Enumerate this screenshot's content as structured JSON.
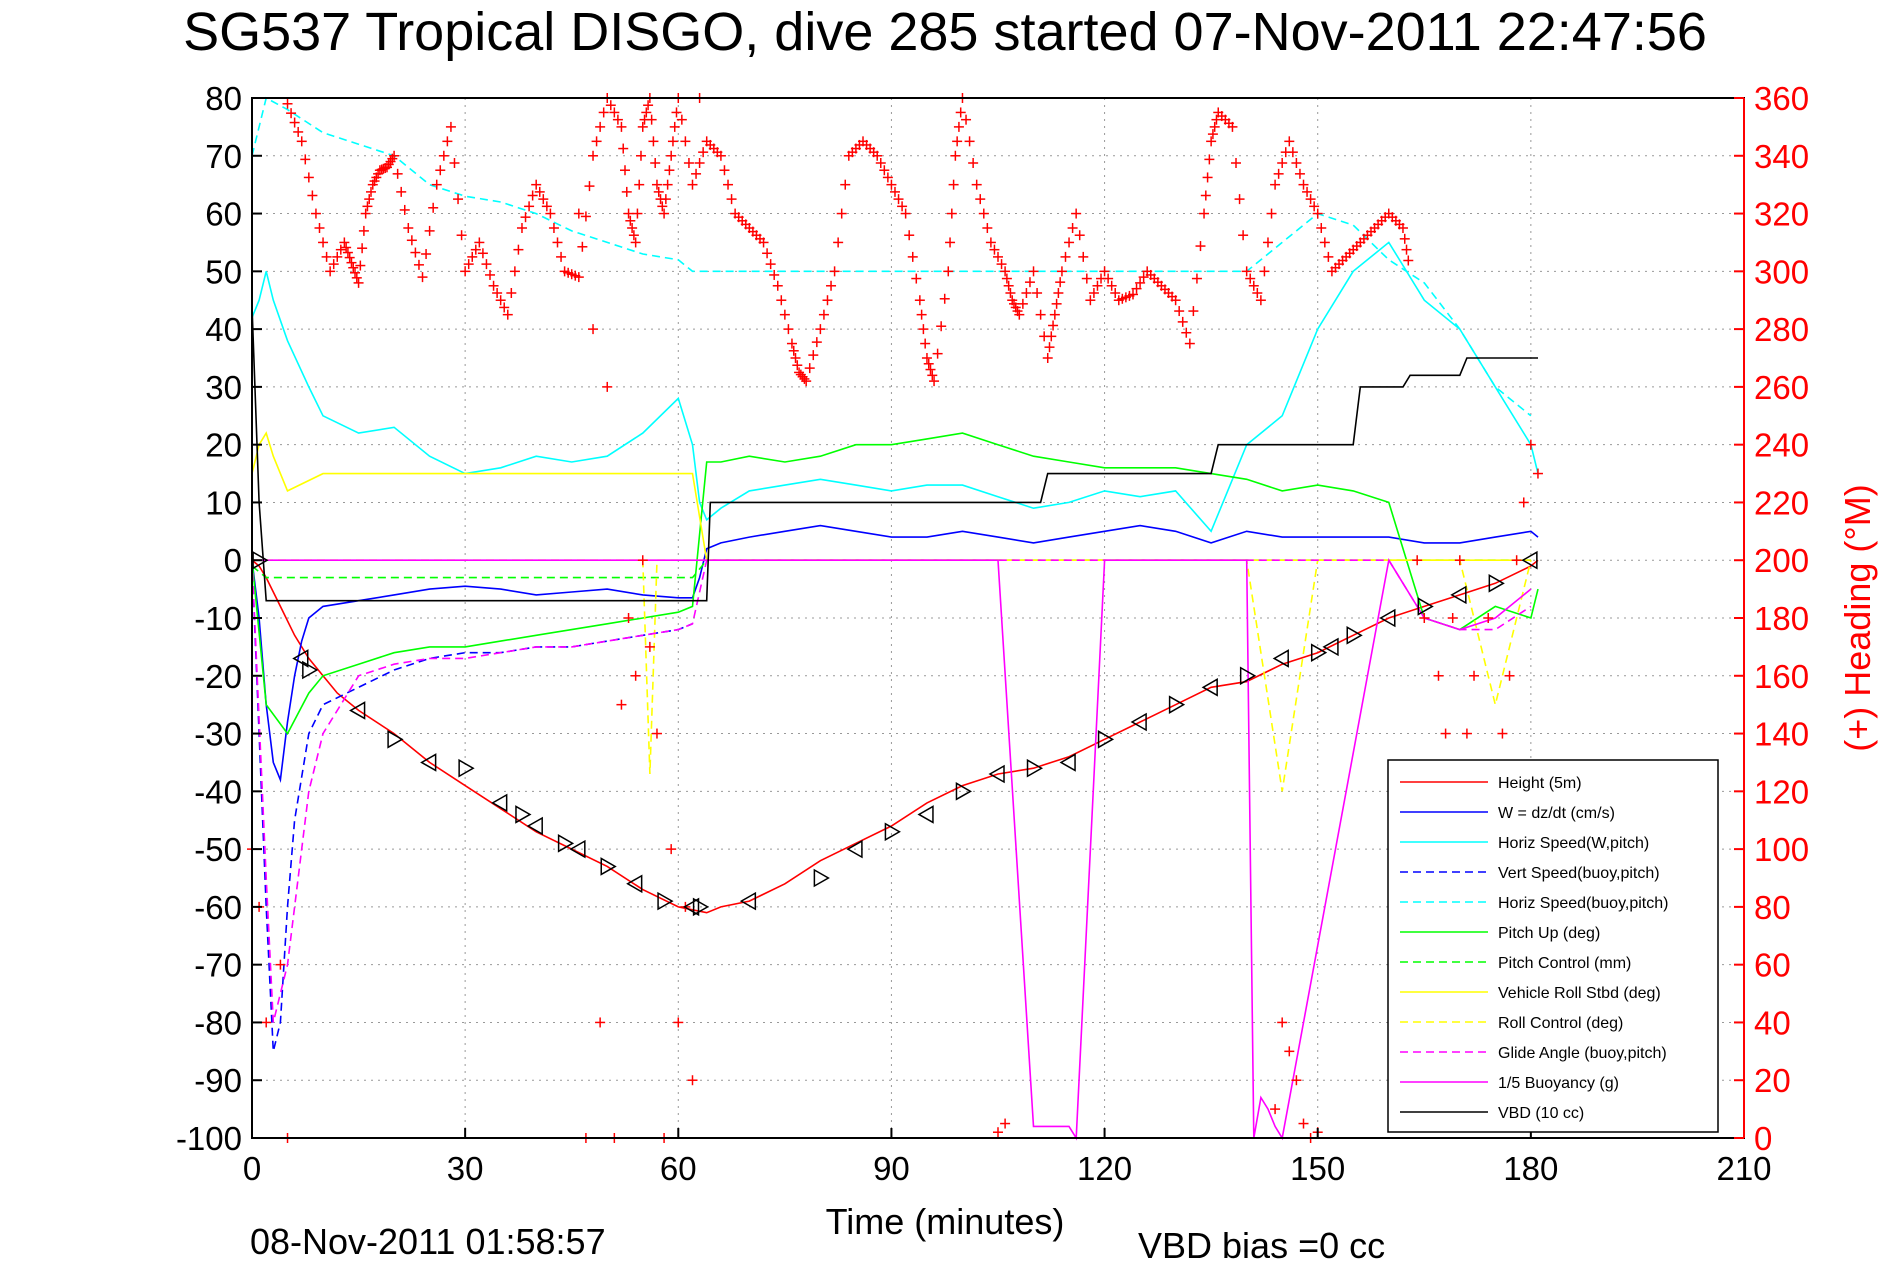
{
  "chart_data": {
    "type": "line",
    "title": "SG537 Tropical DISGO, dive 285 started 07-Nov-2011 22:47:56",
    "xlabel": "Time (minutes)",
    "ylabel": "",
    "y2label": "(+) Heading (°M)",
    "xlim": [
      0,
      210
    ],
    "ylim": [
      -100,
      80
    ],
    "y2lim": [
      0,
      360
    ],
    "x_ticks": [
      "0",
      "30",
      "60",
      "90",
      "120",
      "150",
      "180",
      "210"
    ],
    "y_ticks": [
      "-100",
      "-90",
      "-80",
      "-70",
      "-60",
      "-50",
      "-40",
      "-30",
      "-20",
      "-10",
      "0",
      "10",
      "20",
      "30",
      "40",
      "50",
      "60",
      "70",
      "80"
    ],
    "y2_ticks": [
      "0",
      "20",
      "40",
      "60",
      "80",
      "100",
      "120",
      "140",
      "160",
      "180",
      "200",
      "220",
      "240",
      "260",
      "280",
      "300",
      "320",
      "340",
      "360"
    ],
    "grid": true,
    "legend_placement": "bottom-right",
    "footer_left": "08-Nov-2011 01:58:57",
    "footer_right": "VBD bias =0 cc",
    "series": [
      {
        "name": "Height (5m)",
        "color": "#ff0000",
        "style": "solid",
        "x": [
          0,
          1,
          2,
          4,
          6,
          8,
          10,
          12,
          15,
          20,
          25,
          30,
          35,
          40,
          45,
          50,
          55,
          60,
          62,
          64,
          66,
          70,
          75,
          80,
          85,
          90,
          95,
          100,
          105,
          110,
          115,
          120,
          125,
          130,
          135,
          140,
          145,
          150,
          155,
          160,
          165,
          170,
          175,
          180,
          181
        ],
        "y": [
          0,
          -1,
          -3,
          -8,
          -13,
          -17,
          -20,
          -23,
          -26,
          -30,
          -35,
          -39,
          -43,
          -47,
          -50,
          -53,
          -57,
          -60,
          -60.5,
          -61,
          -60,
          -59,
          -56,
          -52,
          -49,
          -46,
          -42,
          -39,
          -37,
          -36,
          -34,
          -31,
          -28,
          -25,
          -22,
          -21,
          -18,
          -16,
          -13,
          -10,
          -8,
          -6,
          -4,
          -1,
          0
        ]
      },
      {
        "name": "W = dz/dt (cm/s)",
        "color": "#0000ff",
        "style": "solid",
        "x": [
          0,
          1,
          2,
          3,
          4,
          5,
          6,
          7,
          8,
          10,
          15,
          20,
          25,
          30,
          35,
          40,
          45,
          50,
          55,
          60,
          62,
          63,
          64,
          66,
          70,
          75,
          80,
          85,
          90,
          95,
          100,
          105,
          110,
          115,
          120,
          125,
          130,
          135,
          140,
          145,
          150,
          155,
          160,
          165,
          170,
          175,
          180,
          181
        ],
        "y": [
          0,
          -10,
          -25,
          -35,
          -38,
          -28,
          -20,
          -14,
          -10,
          -8,
          -7,
          -6,
          -5,
          -4.5,
          -5,
          -6,
          -5.5,
          -5,
          -6,
          -6.5,
          -6.5,
          -3,
          2,
          3,
          4,
          5,
          6,
          5,
          4,
          4,
          5,
          4,
          3,
          4,
          5,
          6,
          5,
          3,
          5,
          4,
          4,
          4,
          4,
          3,
          3,
          4,
          5,
          4
        ]
      },
      {
        "name": "Horiz Speed(W,pitch)",
        "color": "#00ffff",
        "style": "solid",
        "x": [
          0,
          1,
          2,
          3,
          5,
          8,
          10,
          15,
          20,
          25,
          30,
          35,
          40,
          45,
          50,
          55,
          60,
          62,
          63,
          64,
          66,
          70,
          75,
          80,
          85,
          90,
          95,
          100,
          105,
          110,
          115,
          120,
          125,
          130,
          135,
          140,
          145,
          150,
          155,
          160,
          165,
          170,
          175,
          180,
          181
        ],
        "y": [
          42,
          45,
          50,
          45,
          38,
          30,
          25,
          22,
          23,
          18,
          15,
          16,
          18,
          17,
          18,
          22,
          28,
          20,
          10,
          7,
          9,
          12,
          13,
          14,
          13,
          12,
          13,
          13,
          11,
          9,
          10,
          12,
          11,
          12,
          5,
          20,
          25,
          40,
          50,
          55,
          45,
          40,
          30,
          20,
          15
        ]
      },
      {
        "name": "Vert Speed(buoy,pitch)",
        "color": "#0000ff",
        "style": "dashed",
        "x": [
          0,
          2,
          3,
          4,
          5,
          6,
          8,
          10,
          15,
          20,
          25,
          30,
          35,
          40,
          45,
          50,
          55,
          60,
          62
        ],
        "y": [
          0,
          -60,
          -85,
          -80,
          -60,
          -45,
          -30,
          -25,
          -22,
          -19,
          -17,
          -16,
          -16,
          -15,
          -15,
          -14,
          -13,
          -12,
          -11
        ]
      },
      {
        "name": "Horiz Speed(buoy,pitch)",
        "color": "#00ffff",
        "style": "dashed",
        "x": [
          0,
          2,
          5,
          10,
          15,
          20,
          25,
          30,
          35,
          40,
          45,
          50,
          55,
          60,
          62,
          140,
          145,
          150,
          155,
          160,
          165,
          170,
          175,
          180
        ],
        "y": [
          70,
          80,
          78,
          74,
          72,
          70,
          65,
          63,
          62,
          60,
          57,
          55,
          53,
          52,
          50,
          50,
          55,
          60,
          58,
          52,
          48,
          40,
          30,
          25
        ]
      },
      {
        "name": "Pitch Up (deg)",
        "color": "#00ff00",
        "style": "solid",
        "x": [
          0,
          2,
          5,
          8,
          10,
          15,
          20,
          25,
          30,
          35,
          40,
          45,
          50,
          55,
          60,
          62,
          64,
          66,
          70,
          75,
          80,
          85,
          90,
          95,
          100,
          105,
          110,
          115,
          120,
          125,
          130,
          135,
          140,
          145,
          150,
          155,
          160,
          165,
          170,
          175,
          180,
          181
        ],
        "y": [
          0,
          -25,
          -30,
          -23,
          -20,
          -18,
          -16,
          -15,
          -15,
          -14,
          -13,
          -12,
          -11,
          -10,
          -9,
          -8,
          17,
          17,
          18,
          17,
          18,
          20,
          20,
          21,
          22,
          20,
          18,
          17,
          16,
          16,
          16,
          15,
          14,
          12,
          13,
          12,
          10,
          -10,
          -12,
          -8,
          -10,
          -5
        ]
      },
      {
        "name": "Pitch Control (mm)",
        "color": "#00ff00",
        "style": "dashed",
        "x": [
          0,
          2,
          10,
          20,
          30,
          40,
          50,
          60,
          62,
          64,
          70,
          100,
          130,
          140,
          150,
          160,
          170,
          180
        ],
        "y": [
          -1,
          -3,
          -3,
          -3,
          -3,
          -3,
          -3,
          -3,
          -3,
          0,
          0,
          0,
          0,
          0,
          0,
          0,
          0,
          0
        ]
      },
      {
        "name": "Vehicle Roll Stbd (deg)",
        "color": "#ffff00",
        "style": "solid",
        "x": [
          0,
          1,
          2,
          3,
          4,
          5,
          10,
          15,
          20,
          25,
          30,
          35,
          40,
          45,
          50,
          55,
          60,
          62,
          64,
          70,
          80,
          90,
          100,
          110,
          120,
          130,
          140,
          150,
          160,
          170,
          180
        ],
        "y": [
          15,
          20,
          22,
          18,
          15,
          12,
          15,
          15,
          15,
          15,
          15,
          15,
          15,
          15,
          15,
          15,
          15,
          15,
          0,
          0,
          0,
          0,
          0,
          0,
          0,
          0,
          0,
          0,
          0,
          0,
          0
        ]
      },
      {
        "name": "Roll Control (deg)",
        "color": "#ffff00",
        "style": "dashed",
        "x": [
          0,
          10,
          20,
          30,
          40,
          50,
          55,
          56,
          57,
          60,
          62,
          64,
          100,
          140,
          145,
          150,
          160,
          170,
          175,
          180
        ],
        "y": [
          0,
          0,
          0,
          0,
          0,
          0,
          0,
          -37,
          0,
          0,
          0,
          0,
          0,
          0,
          -40,
          0,
          0,
          0,
          -25,
          0
        ]
      },
      {
        "name": "Glide Angle (buoy,pitch)",
        "color": "#ff00ff",
        "style": "dashed",
        "x": [
          0,
          2,
          3,
          5,
          8,
          10,
          15,
          20,
          25,
          30,
          35,
          40,
          45,
          50,
          55,
          60,
          62,
          64,
          100,
          140,
          160,
          165,
          170,
          175,
          180
        ],
        "y": [
          0,
          -55,
          -80,
          -70,
          -40,
          -30,
          -20,
          -18,
          -17,
          -17,
          -16,
          -15,
          -15,
          -14,
          -13,
          -12,
          -11,
          0,
          0,
          0,
          0,
          -10,
          -12,
          -12,
          -8
        ]
      },
      {
        "name": "1/5 Buoyancy (g)",
        "color": "#ff00ff",
        "style": "solid",
        "x": [
          0,
          20,
          40,
          62,
          64,
          100,
          105,
          110,
          115,
          116,
          120,
          140,
          141,
          142,
          143,
          144,
          145,
          160,
          165,
          170,
          175,
          180
        ],
        "y": [
          0,
          0,
          0,
          0,
          0,
          0,
          0,
          -98,
          -98,
          -100,
          0,
          0,
          -100,
          -93,
          -95,
          -98,
          -100,
          0,
          -10,
          -12,
          -10,
          -5
        ]
      },
      {
        "name": "VBD (10 cc)",
        "color": "#000000",
        "style": "solid",
        "x": [
          0,
          1,
          2,
          64,
          64.5,
          105,
          106,
          111,
          112,
          135,
          136,
          155,
          156,
          162,
          163,
          170,
          171,
          181
        ],
        "y": [
          44,
          10,
          -7,
          -7,
          10,
          10,
          10,
          10,
          15,
          15,
          20,
          20,
          30,
          30,
          32,
          32,
          35,
          35
        ]
      }
    ],
    "heading": {
      "name": "(+) Heading",
      "color": "#ff0000",
      "x": [
        5,
        7,
        9,
        11,
        13,
        14,
        15,
        16,
        17,
        18,
        19,
        20,
        22,
        24,
        26,
        28,
        30,
        32,
        34,
        36,
        38,
        40,
        42,
        44,
        46,
        48,
        50,
        52,
        53,
        54,
        55,
        56,
        57,
        58,
        59,
        60,
        62,
        64,
        66,
        68,
        70,
        72,
        74,
        76,
        77,
        78,
        80,
        82,
        84,
        86,
        88,
        90,
        92,
        94,
        95,
        96,
        98,
        99,
        100,
        102,
        104,
        106,
        107,
        108,
        110,
        112,
        113,
        114,
        116,
        118,
        120,
        122,
        124,
        126,
        128,
        130,
        132,
        134,
        135,
        136,
        138,
        140,
        142,
        144,
        146,
        148,
        150,
        152,
        154,
        156,
        158,
        160,
        162,
        163
      ],
      "y": [
        358,
        345,
        320,
        300,
        310,
        303,
        296,
        320,
        330,
        335,
        336,
        340,
        315,
        298,
        330,
        350,
        300,
        310,
        295,
        285,
        315,
        330,
        320,
        300,
        298,
        340,
        360,
        350,
        320,
        310,
        350,
        360,
        330,
        320,
        340,
        360,
        330,
        345,
        340,
        320,
        315,
        310,
        295,
        275,
        265,
        262,
        280,
        300,
        340,
        345,
        340,
        330,
        320,
        290,
        270,
        262,
        300,
        340,
        360,
        330,
        310,
        300,
        290,
        285,
        300,
        270,
        285,
        300,
        320,
        290,
        300,
        290,
        292,
        300,
        295,
        290,
        275,
        320,
        345,
        355,
        350,
        300,
        290,
        330,
        345,
        330,
        320,
        300,
        305,
        310,
        315,
        320,
        315,
        300
      ]
    },
    "heading_spikes": {
      "x": [
        0,
        1,
        2,
        4,
        5,
        46,
        47,
        48,
        49,
        50,
        51,
        52,
        53,
        54,
        55,
        56,
        57,
        58,
        59,
        60,
        61,
        62,
        63,
        105,
        106,
        144,
        145,
        146,
        147,
        148,
        149,
        150,
        164,
        165,
        166,
        167,
        168,
        169,
        170,
        171,
        172,
        173,
        174,
        175,
        176,
        177,
        178,
        179,
        180,
        181
      ],
      "y": [
        100,
        80,
        40,
        60,
        0,
        320,
        0,
        280,
        40,
        260,
        0,
        150,
        180,
        160,
        200,
        170,
        140,
        0,
        100,
        40,
        80,
        20,
        360,
        2,
        5,
        10,
        40,
        30,
        20,
        5,
        0,
        2,
        200,
        180,
        120,
        160,
        140,
        180,
        200,
        140,
        160,
        100,
        180,
        120,
        140,
        160,
        200,
        220,
        240,
        230
      ]
    },
    "markers": {
      "name": "Height (5m) markers",
      "x": [
        1,
        7,
        8,
        15,
        20,
        25,
        30,
        35,
        38,
        40,
        44,
        46,
        50,
        54,
        58,
        62,
        63,
        70,
        80,
        85,
        90,
        95,
        100,
        105,
        110,
        115,
        120,
        125,
        130,
        135,
        140,
        145,
        150,
        152,
        155,
        160,
        165,
        170,
        175,
        180
      ],
      "y": [
        0,
        -17,
        -19,
        -26,
        -31,
        -35,
        -36,
        -42,
        -44,
        -46,
        -49,
        -50,
        -53,
        -56,
        -59,
        -60,
        -60,
        -59,
        -55,
        -50,
        -47,
        -44,
        -40,
        -37,
        -36,
        -35,
        -31,
        -28,
        -25,
        -22,
        -20,
        -17,
        -16,
        -15,
        -13,
        -10,
        -8,
        -6,
        -4,
        0
      ]
    }
  }
}
